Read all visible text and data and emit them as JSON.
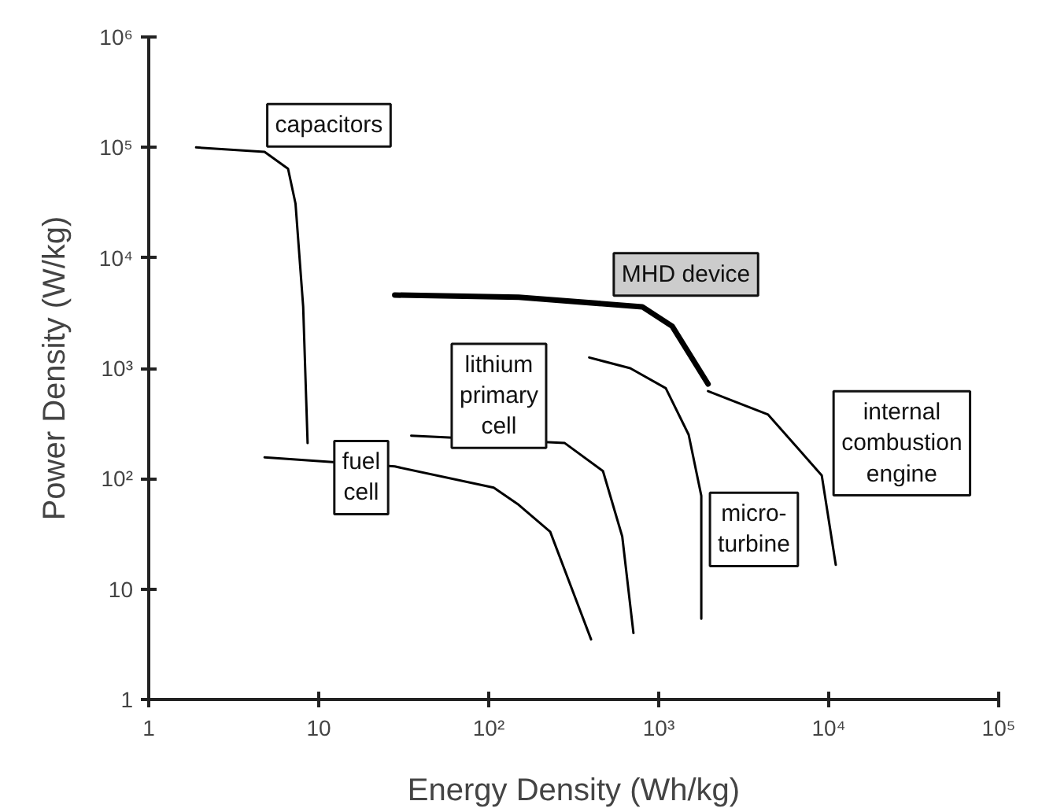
{
  "chart_data": {
    "type": "line",
    "xlabel": "Energy Density (Wh/kg)",
    "ylabel": "Power Density (W/kg)",
    "log": "xy",
    "grid": false,
    "legend": false,
    "marker": "none",
    "line_style": "solid",
    "xlim": [
      1,
      100000
    ],
    "ylim": [
      1,
      1000000
    ],
    "xticks": [
      1,
      10,
      {
        "value": 100,
        "label": "10²"
      },
      {
        "value": 1000,
        "label": "10³"
      },
      {
        "value": 10000,
        "label": "10⁴"
      },
      {
        "value": 100000,
        "label": "10⁵"
      }
    ],
    "yticks": [
      1,
      10,
      {
        "value": 100,
        "label": "10²"
      },
      {
        "value": 1000,
        "label": "10³"
      },
      {
        "value": 10000,
        "label": "10⁴"
      },
      {
        "value": 100000,
        "label": "10⁵"
      },
      {
        "value": 1000000,
        "label": "10⁶"
      }
    ],
    "series": [
      {
        "name": "capacitors",
        "color": "#000000",
        "x": [
          1.9,
          4.8,
          6.6,
          7.3,
          8.1,
          8.6
        ],
        "values": [
          100000,
          91000,
          64000,
          31000,
          3600,
          210
        ]
      },
      {
        "name": "MHD device",
        "color": "#000000",
        "x": [
          28,
          150,
          800,
          1200,
          1950
        ],
        "values": [
          4600,
          4400,
          3600,
          2400,
          720
        ]
      },
      {
        "name": "lithium primary cell",
        "color": "#000000",
        "x": [
          35,
          280,
          470,
          610,
          710
        ],
        "values": [
          245,
          210,
          117,
          30,
          4
        ]
      },
      {
        "name": "fuel cell",
        "color": "#000000",
        "x": [
          4.8,
          28,
          107,
          150,
          230,
          400
        ],
        "values": [
          156,
          129,
          83,
          58,
          33,
          3.5
        ]
      },
      {
        "name": "micro-turbine",
        "color": "#000000",
        "x": [
          390,
          680,
          1100,
          1500,
          1780,
          1780
        ],
        "values": [
          1250,
          1000,
          660,
          250,
          70,
          5.4
        ]
      },
      {
        "name": "internal combustion engine",
        "color": "#000000",
        "x": [
          1950,
          4400,
          9100,
          11000
        ],
        "values": [
          620,
          380,
          107,
          16.6
        ]
      }
    ]
  }
}
